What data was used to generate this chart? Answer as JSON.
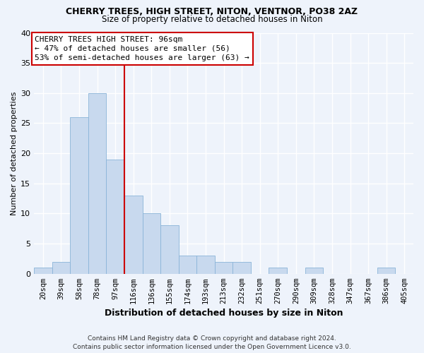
{
  "title": "CHERRY TREES, HIGH STREET, NITON, VENTNOR, PO38 2AZ",
  "subtitle": "Size of property relative to detached houses in Niton",
  "xlabel": "Distribution of detached houses by size in Niton",
  "ylabel": "Number of detached properties",
  "bar_color": "#c8d9ee",
  "bar_edge_color": "#8ab4d8",
  "categories": [
    "20sqm",
    "39sqm",
    "58sqm",
    "78sqm",
    "97sqm",
    "116sqm",
    "136sqm",
    "155sqm",
    "174sqm",
    "193sqm",
    "213sqm",
    "232sqm",
    "251sqm",
    "270sqm",
    "290sqm",
    "309sqm",
    "328sqm",
    "347sqm",
    "367sqm",
    "386sqm",
    "405sqm"
  ],
  "values": [
    1,
    2,
    26,
    30,
    19,
    13,
    10,
    8,
    3,
    3,
    2,
    2,
    0,
    1,
    0,
    1,
    0,
    0,
    0,
    1,
    0
  ],
  "ylim": [
    0,
    40
  ],
  "yticks": [
    0,
    5,
    10,
    15,
    20,
    25,
    30,
    35,
    40
  ],
  "property_line_x": 4.5,
  "annotation_title": "CHERRY TREES HIGH STREET: 96sqm",
  "annotation_line1": "← 47% of detached houses are smaller (56)",
  "annotation_line2": "53% of semi-detached houses are larger (63) →",
  "footer1": "Contains HM Land Registry data © Crown copyright and database right 2024.",
  "footer2": "Contains public sector information licensed under the Open Government Licence v3.0.",
  "bg_color": "#eef3fb",
  "grid_color": "#ffffff",
  "line_color": "#cc0000",
  "title_fontsize": 9,
  "subtitle_fontsize": 8.5,
  "ylabel_fontsize": 8,
  "xlabel_fontsize": 9,
  "annotation_fontsize": 8,
  "tick_fontsize": 7.5,
  "footer_fontsize": 6.5
}
